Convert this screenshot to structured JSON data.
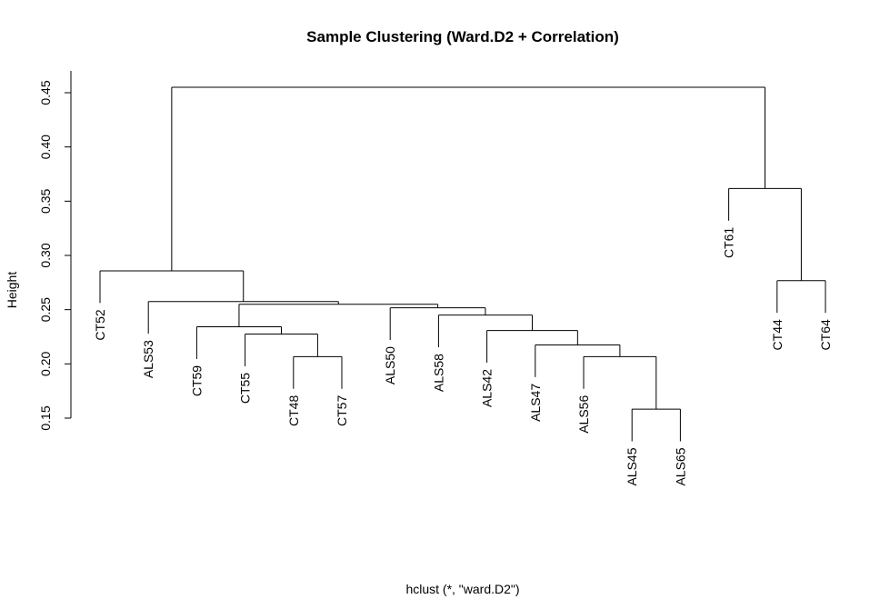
{
  "chart_data": {
    "type": "dendrogram",
    "title": "Sample Clustering (Ward.D2 + Correlation)",
    "xlabel": "hclust (*, \"ward.D2\")",
    "ylabel": "Height",
    "ylim": [
      0.15,
      0.45
    ],
    "yticks": [
      0.15,
      0.2,
      0.25,
      0.3,
      0.35,
      0.4,
      0.45
    ],
    "ytick_labels": [
      "0.15",
      "0.20",
      "0.25",
      "0.30",
      "0.35",
      "0.40",
      "0.45"
    ],
    "leaves": [
      "CT52",
      "ALS53",
      "CT59",
      "CT55",
      "CT48",
      "CT57",
      "ALS50",
      "ALS58",
      "ALS42",
      "ALS47",
      "ALS56",
      "ALS45",
      "ALS65",
      "CT61",
      "CT44",
      "CT64"
    ],
    "merges": [
      {
        "left": "CT48",
        "right": "CT57",
        "height": 0.2067
      },
      {
        "left": "ALS45",
        "right": "ALS65",
        "height": 0.1583
      },
      {
        "left": "CT55",
        "right": "m1",
        "height": 0.2275
      },
      {
        "left": "CT59",
        "right": "m3",
        "height": 0.2342
      },
      {
        "left": "ALS56",
        "right": "m2",
        "height": 0.2067
      },
      {
        "left": "ALS47",
        "right": "m5",
        "height": 0.2175
      },
      {
        "left": "ALS42",
        "right": "m6",
        "height": 0.2308
      },
      {
        "left": "ALS58",
        "right": "m7",
        "height": 0.245
      },
      {
        "left": "ALS50",
        "right": "m8",
        "height": 0.2517
      },
      {
        "left": "m4",
        "right": "m9",
        "height": 0.255
      },
      {
        "left": "ALS53",
        "right": "m10",
        "height": 0.2575
      },
      {
        "left": "CT52",
        "right": "m11",
        "height": 0.2858
      },
      {
        "left": "CT44",
        "right": "CT64",
        "height": 0.2767
      },
      {
        "left": "CT61",
        "right": "m13",
        "height": 0.3617
      },
      {
        "left": "m12",
        "right": "m14",
        "height": 0.455
      }
    ]
  }
}
